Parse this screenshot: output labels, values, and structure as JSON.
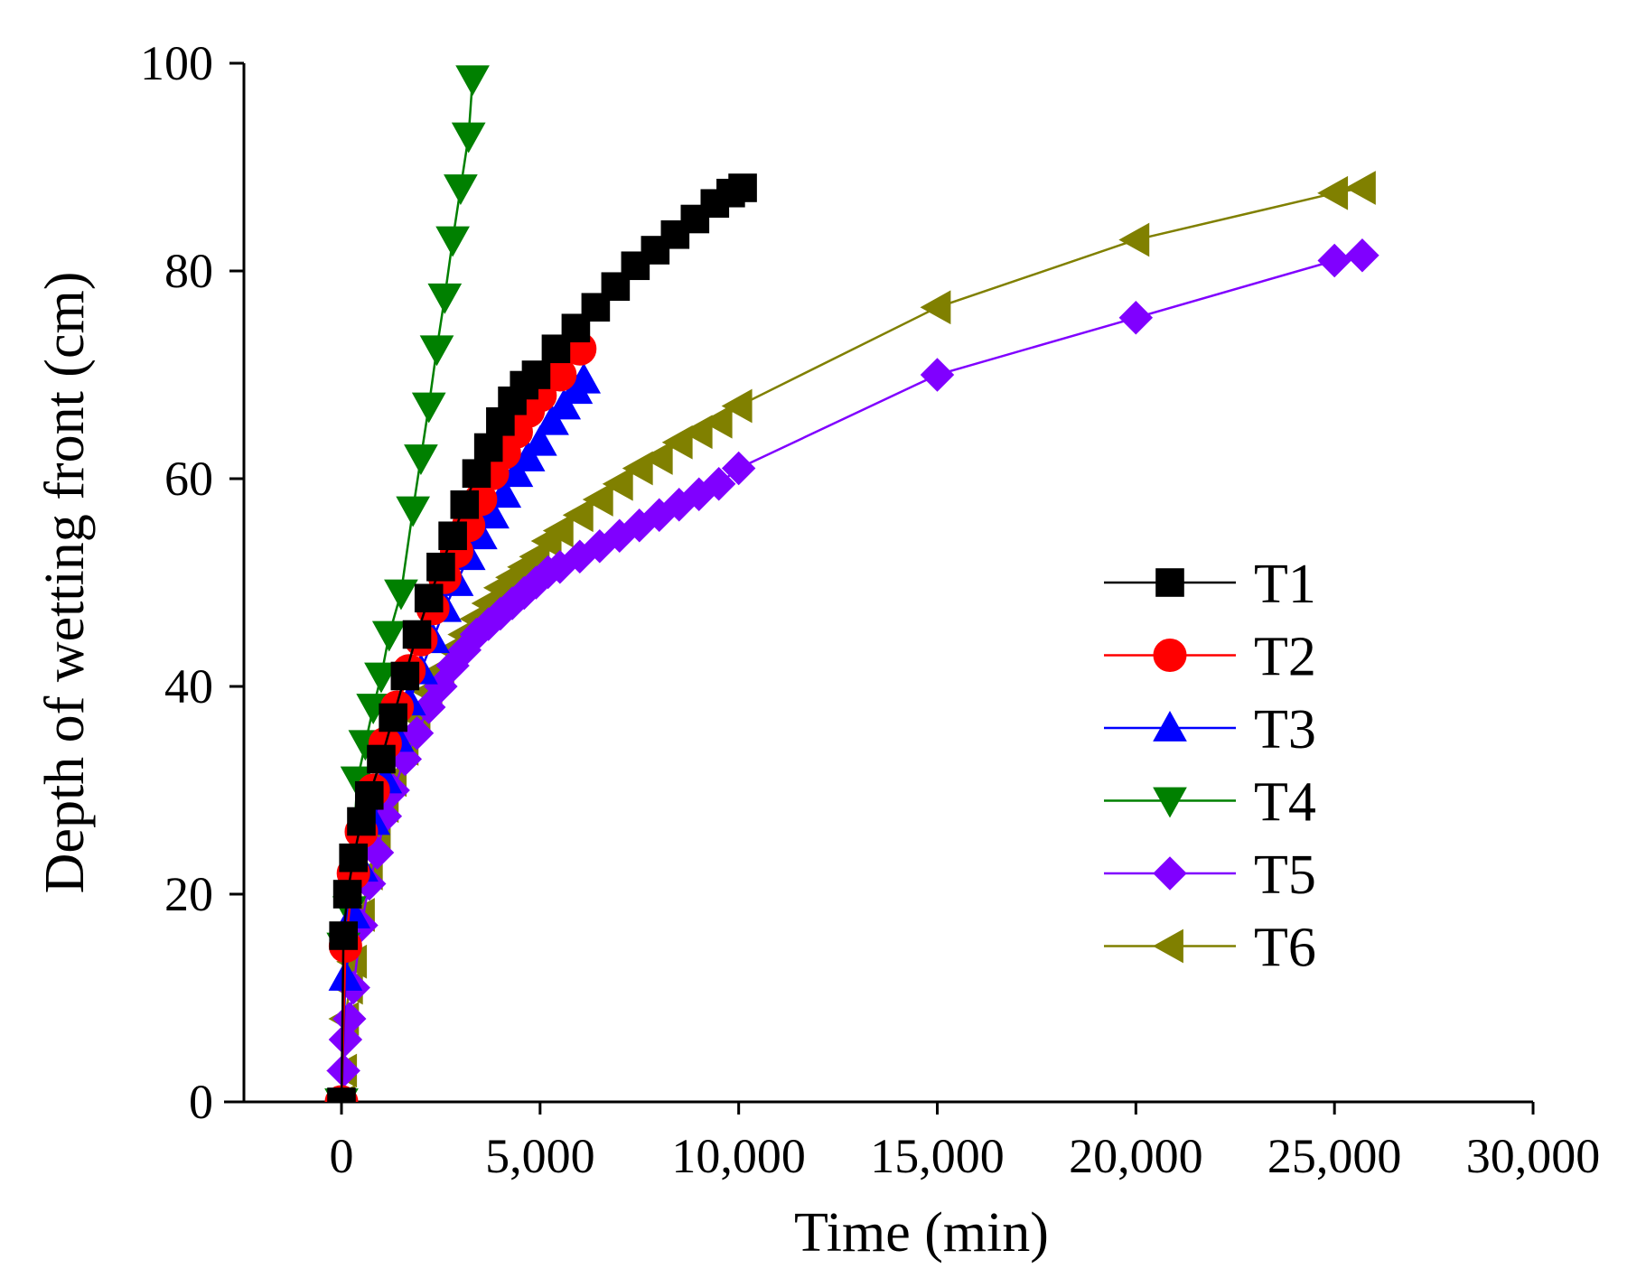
{
  "chart_data": {
    "type": "line",
    "title": "",
    "xlabel": "Time (min)",
    "ylabel": "Depth of wetting front (cm)",
    "xlim": [
      -3000,
      30000
    ],
    "ylim": [
      0,
      100
    ],
    "xticks": [
      0,
      5000,
      10000,
      15000,
      20000,
      25000,
      30000
    ],
    "xtick_labels": [
      "0",
      "5,000",
      "10,000",
      "15,000",
      "20,000",
      "25,000",
      "30,000"
    ],
    "yticks": [
      0,
      20,
      40,
      60,
      80,
      100
    ],
    "ytick_labels": [
      "0",
      "20",
      "40",
      "60",
      "80",
      "100"
    ],
    "grid": false,
    "legend_position": "right",
    "series": [
      {
        "name": "T1",
        "color": "#000000",
        "marker": "square",
        "x": [
          0,
          50,
          150,
          300,
          500,
          700,
          1000,
          1300,
          1600,
          1900,
          2200,
          2500,
          2800,
          3100,
          3400,
          3700,
          4000,
          4300,
          4600,
          4900,
          5400,
          5900,
          6400,
          6900,
          7400,
          7900,
          8400,
          8900,
          9400,
          9800,
          10100
        ],
        "y": [
          0,
          16,
          20,
          23.5,
          27,
          29.5,
          33,
          37,
          41,
          45,
          48.5,
          51.5,
          54.5,
          57.5,
          60.5,
          63,
          65.5,
          67.5,
          69,
          70,
          72.5,
          74.5,
          76.5,
          78.5,
          80.5,
          82,
          83.5,
          85,
          86.5,
          87.5,
          88
        ]
      },
      {
        "name": "T2",
        "color": "#ff0000",
        "marker": "circle",
        "x": [
          0,
          100,
          300,
          500,
          800,
          1100,
          1400,
          1700,
          2000,
          2300,
          2600,
          2900,
          3200,
          3500,
          3800,
          4100,
          4400,
          4700,
          5000,
          5500,
          6000
        ],
        "y": [
          0,
          15,
          22,
          26,
          30,
          34.5,
          38,
          41.5,
          44.5,
          47.5,
          50.5,
          53,
          55.5,
          58,
          60.5,
          62.5,
          64.5,
          66.5,
          68,
          70,
          72.5
        ]
      },
      {
        "name": "T3",
        "color": "#0000ff",
        "marker": "triangle-up",
        "x": [
          0,
          100,
          300,
          500,
          800,
          1100,
          1400,
          1700,
          2000,
          2300,
          2600,
          2900,
          3200,
          3500,
          3800,
          4100,
          4400,
          4700,
          5000,
          5300,
          5600,
          5900,
          6100
        ],
        "y": [
          0,
          12,
          18,
          22.5,
          27,
          31,
          35,
          38.5,
          41.5,
          44.5,
          47.5,
          50,
          52.5,
          54.5,
          56.5,
          58.5,
          60.5,
          62,
          63.5,
          65.5,
          67,
          68.5,
          69.5
        ]
      },
      {
        "name": "T4",
        "color": "#008000",
        "marker": "triangle-down",
        "x": [
          0,
          50,
          200,
          400,
          600,
          800,
          1000,
          1200,
          1500,
          1800,
          2000,
          2200,
          2400,
          2600,
          2800,
          3000,
          3200,
          3300
        ],
        "y": [
          0,
          15,
          18.5,
          31,
          34.5,
          38,
          41,
          45,
          49,
          57,
          62,
          67,
          72.5,
          77.5,
          83,
          88,
          93,
          98.5
        ]
      },
      {
        "name": "T5",
        "color": "#8000ff",
        "marker": "diamond",
        "x": [
          0,
          50,
          100,
          200,
          300,
          500,
          700,
          900,
          1100,
          1300,
          1600,
          1900,
          2200,
          2500,
          2800,
          3100,
          3400,
          3700,
          4000,
          4300,
          4600,
          4900,
          5200,
          5500,
          6000,
          6500,
          7000,
          7500,
          8000,
          8500,
          9000,
          9500,
          10000,
          15000,
          20000,
          25000,
          25700
        ],
        "y": [
          0,
          3,
          6,
          8,
          11,
          17,
          21,
          24,
          27.5,
          30,
          33,
          35.5,
          38,
          40,
          42,
          43.5,
          45,
          46,
          47,
          48,
          49,
          50,
          51,
          51.5,
          52.5,
          53.5,
          54.5,
          55.5,
          56.5,
          57.5,
          58.5,
          59.5,
          61,
          70,
          75.5,
          81,
          81.5
        ]
      },
      {
        "name": "T6",
        "color": "#808000",
        "marker": "triangle-left",
        "x": [
          0,
          50,
          100,
          200,
          300,
          500,
          700,
          900,
          1100,
          1300,
          1600,
          1900,
          2200,
          2500,
          2800,
          3100,
          3400,
          3700,
          4000,
          4300,
          4600,
          4900,
          5200,
          5500,
          6000,
          6500,
          7000,
          7500,
          8000,
          8500,
          9000,
          9500,
          10000,
          15000,
          20000,
          25000,
          25700
        ],
        "y": [
          0,
          3,
          8,
          11,
          13.5,
          18,
          22,
          25.5,
          28.5,
          31,
          34,
          37,
          39.5,
          41.5,
          43.5,
          45,
          46.5,
          48,
          49.5,
          50.5,
          51.5,
          52.5,
          54,
          55,
          56.5,
          58,
          59.5,
          61,
          62,
          63.5,
          64.5,
          65.5,
          67,
          76.5,
          83,
          87.5,
          88
        ]
      }
    ]
  }
}
